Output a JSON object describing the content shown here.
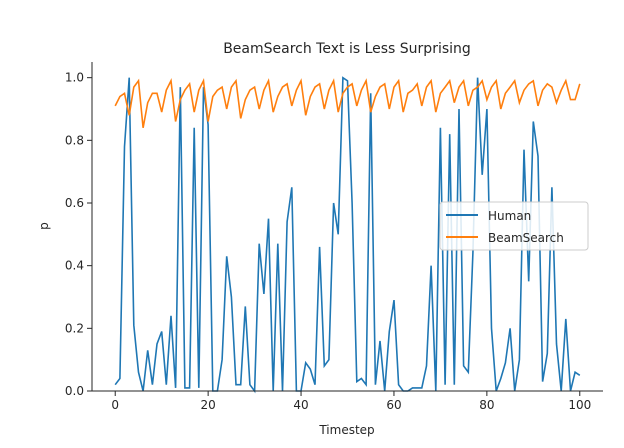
{
  "chart_data": {
    "type": "line",
    "title": "BeamSearch Text is Less Surprising",
    "xlabel": "Timestep",
    "ylabel": "p",
    "xlim": [
      -5,
      105
    ],
    "ylim": [
      0,
      1.05
    ],
    "xticks": [
      0,
      20,
      40,
      60,
      80,
      100
    ],
    "yticks": [
      0.0,
      0.2,
      0.4,
      0.6,
      0.8,
      1.0
    ],
    "xtick_labels": [
      "0",
      "20",
      "40",
      "60",
      "80",
      "100"
    ],
    "ytick_labels": [
      "0.0",
      "0.2",
      "0.4",
      "0.6",
      "0.8",
      "1.0"
    ],
    "grid": false,
    "legend_position": "center-right",
    "series": [
      {
        "name": "Human",
        "color": "#1f77b4",
        "values": [
          0.02,
          0.04,
          0.78,
          1.0,
          0.21,
          0.06,
          0.0,
          0.13,
          0.02,
          0.15,
          0.19,
          0.02,
          0.24,
          0.01,
          0.97,
          0.01,
          0.01,
          0.84,
          0.01,
          0.97,
          0.85,
          0.0,
          0.0,
          0.1,
          0.43,
          0.3,
          0.02,
          0.02,
          0.27,
          0.02,
          0.0,
          0.47,
          0.31,
          0.55,
          0.0,
          0.47,
          0.0,
          0.54,
          0.65,
          0.0,
          0.0,
          0.09,
          0.07,
          0.02,
          0.46,
          0.08,
          0.1,
          0.6,
          0.5,
          1.0,
          0.99,
          0.6,
          0.03,
          0.04,
          0.02,
          0.95,
          0.02,
          0.16,
          0.0,
          0.19,
          0.29,
          0.02,
          0.0,
          0.0,
          0.01,
          0.01,
          0.01,
          0.08,
          0.4,
          0.0,
          0.84,
          0.02,
          0.82,
          0.02,
          0.9,
          0.08,
          0.06,
          0.44,
          1.0,
          0.69,
          0.9,
          0.2,
          0.0,
          0.04,
          0.09,
          0.2,
          0.0,
          0.1,
          0.77,
          0.35,
          0.86,
          0.75,
          0.03,
          0.12,
          0.65,
          0.15,
          0.0,
          0.23,
          0.0,
          0.06,
          0.05
        ]
      },
      {
        "name": "BeamSearch",
        "color": "#ff7f0e",
        "values": [
          0.91,
          0.94,
          0.95,
          0.88,
          0.97,
          0.99,
          0.84,
          0.92,
          0.95,
          0.95,
          0.89,
          0.96,
          0.99,
          0.86,
          0.93,
          0.96,
          0.98,
          0.89,
          0.96,
          0.99,
          0.86,
          0.94,
          0.96,
          0.97,
          0.9,
          0.97,
          0.99,
          0.87,
          0.93,
          0.96,
          0.97,
          0.9,
          0.96,
          0.99,
          0.89,
          0.94,
          0.97,
          0.98,
          0.91,
          0.96,
          0.99,
          0.88,
          0.94,
          0.97,
          0.98,
          0.9,
          0.96,
          0.99,
          0.89,
          0.95,
          0.97,
          0.98,
          0.91,
          0.96,
          0.99,
          0.89,
          0.94,
          0.97,
          0.98,
          0.9,
          0.97,
          0.99,
          0.89,
          0.95,
          0.96,
          0.98,
          0.91,
          0.97,
          0.99,
          0.89,
          0.95,
          0.97,
          0.99,
          0.92,
          0.97,
          0.99,
          0.91,
          0.96,
          0.97,
          0.99,
          0.93,
          0.97,
          0.99,
          0.9,
          0.95,
          0.97,
          0.99,
          0.92,
          0.96,
          0.98,
          0.99,
          0.91,
          0.96,
          0.98,
          0.97,
          0.92,
          0.96,
          0.99,
          0.93,
          0.93,
          0.98
        ]
      }
    ]
  }
}
